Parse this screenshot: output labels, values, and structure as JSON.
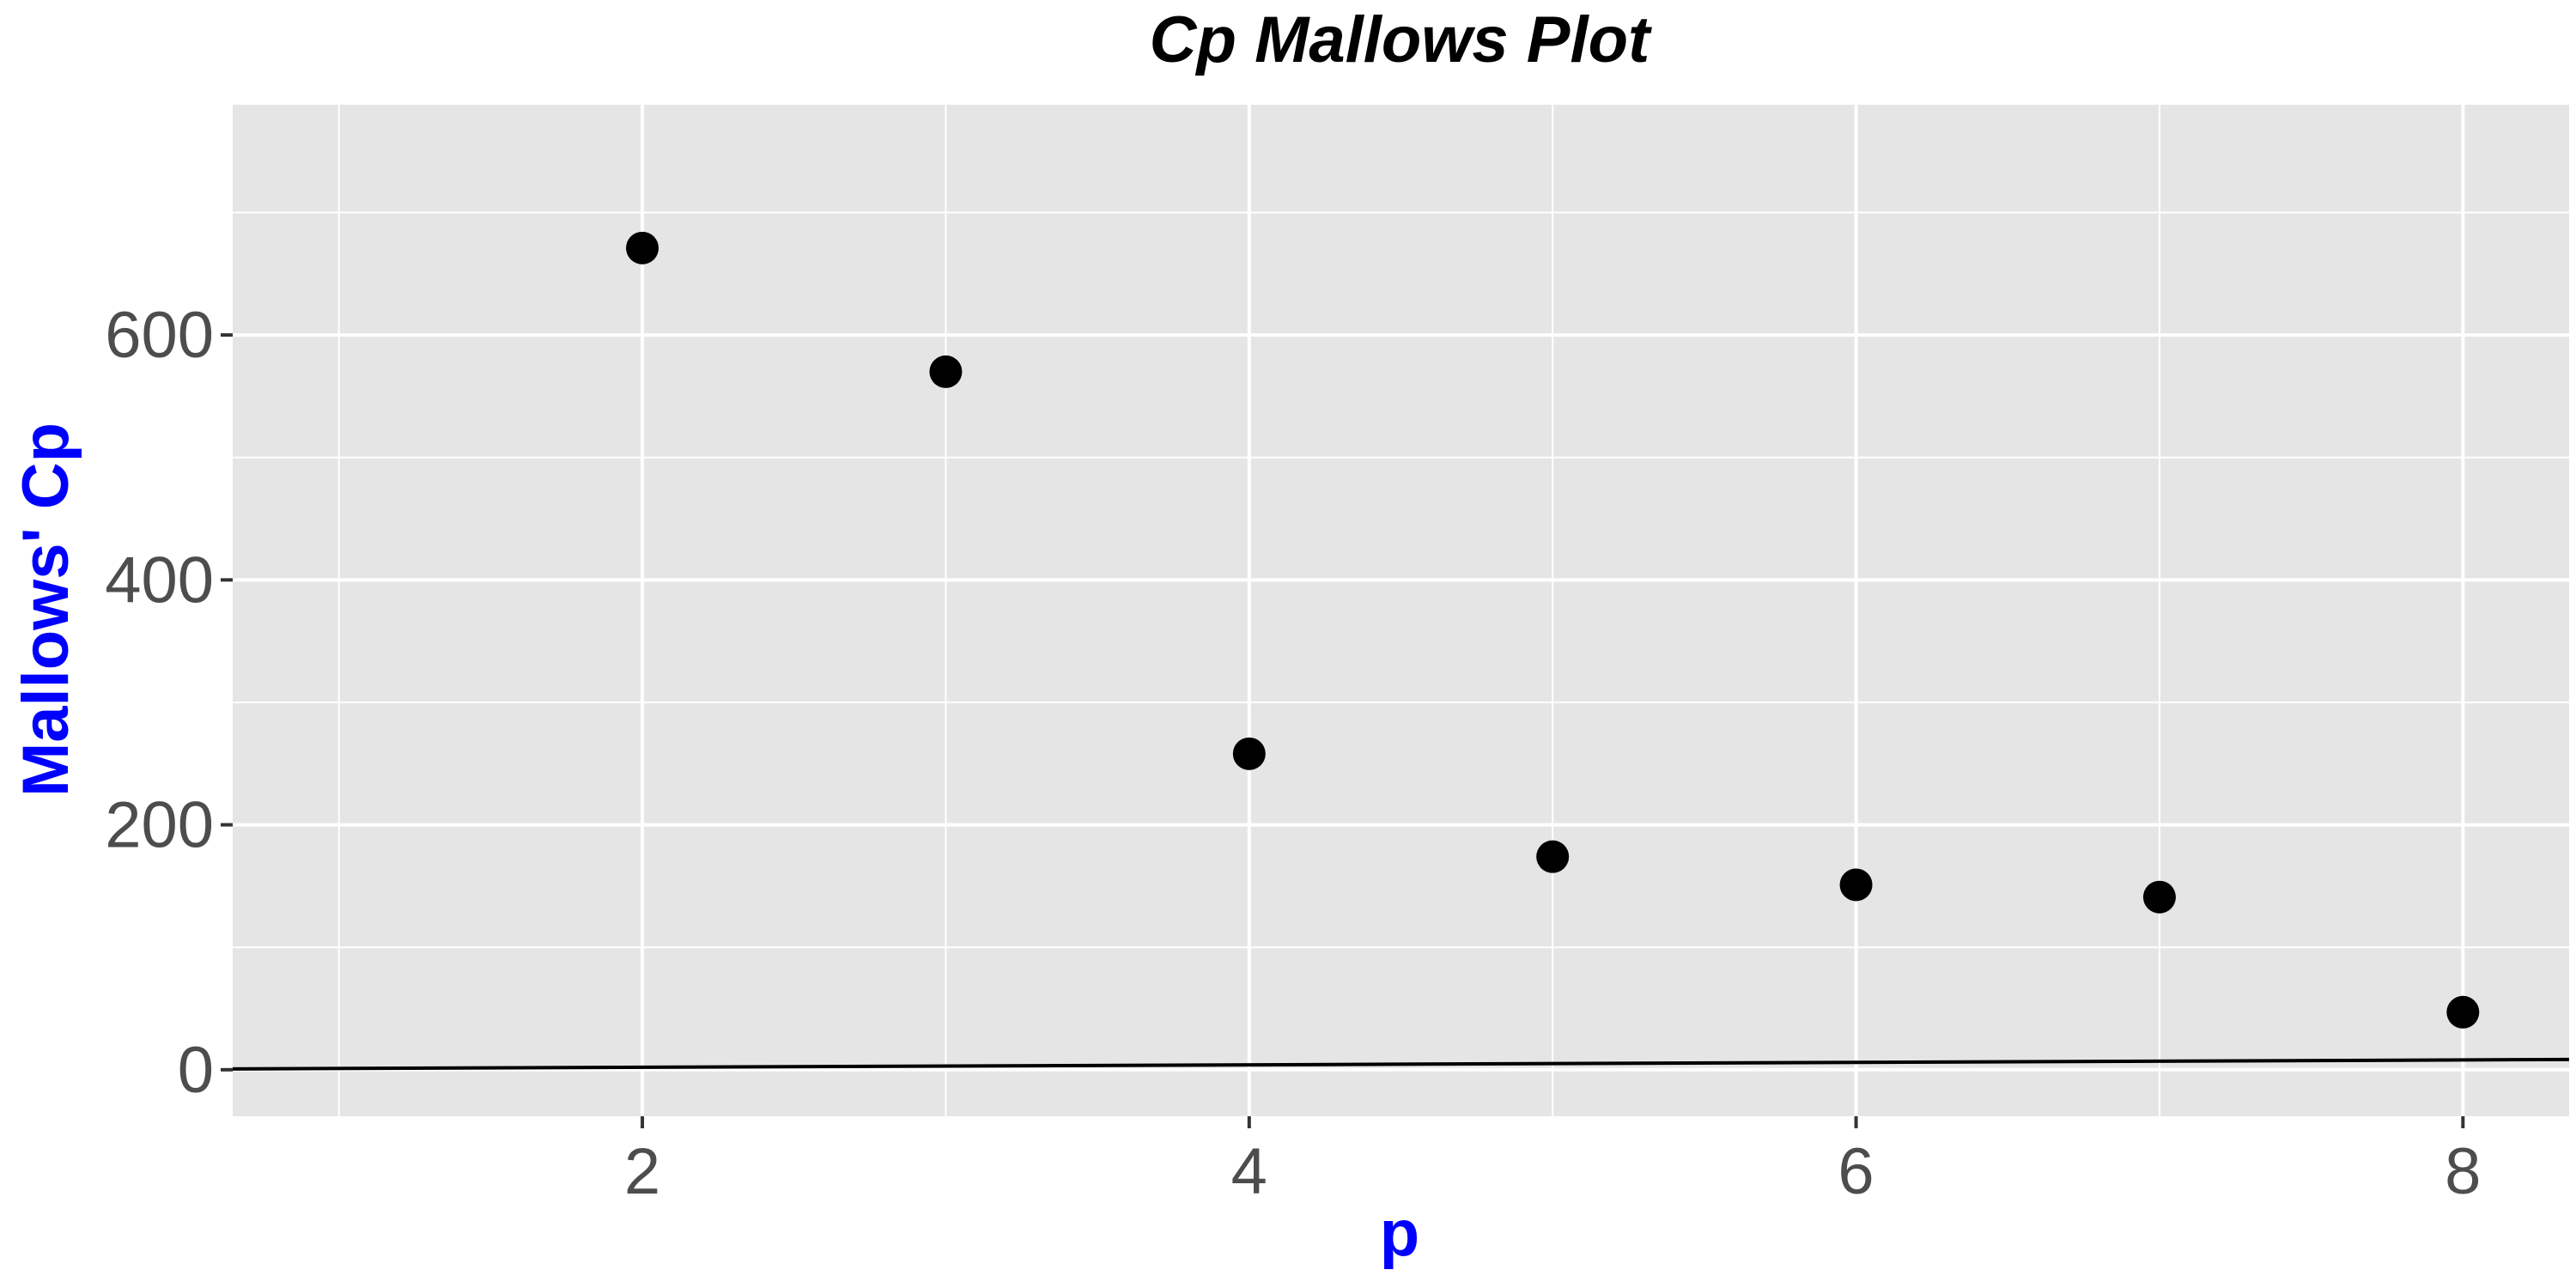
{
  "chart_data": {
    "type": "scatter",
    "title": "Cp Mallows Plot",
    "xlabel": "p",
    "ylabel": "Mallows' Cp",
    "x": [
      2,
      3,
      4,
      5,
      6,
      7,
      8
    ],
    "y": [
      671,
      570,
      258,
      174,
      151,
      141,
      47
    ],
    "xlim": [
      0.65,
      8.35
    ],
    "ylim": [
      -38,
      788
    ],
    "xticks": [
      2,
      4,
      6,
      8
    ],
    "xtick_labels": [
      "2",
      "4",
      "6",
      "8"
    ],
    "yticks": [
      0,
      200,
      400,
      600
    ],
    "ytick_labels": [
      "0",
      "200",
      "400",
      "600"
    ],
    "reference_line": {
      "type": "line",
      "points": [
        [
          0.65,
          0.65
        ],
        [
          8.35,
          8.35
        ]
      ],
      "color": "#000000"
    },
    "grid": true,
    "legend": "none",
    "colors": {
      "panel_background": "#e5e5e5",
      "grid_line": "#ffffff",
      "point": "#000000",
      "axis_title": "#0000ff",
      "tick_label": "#4d4d4d",
      "title": "#000000"
    }
  }
}
